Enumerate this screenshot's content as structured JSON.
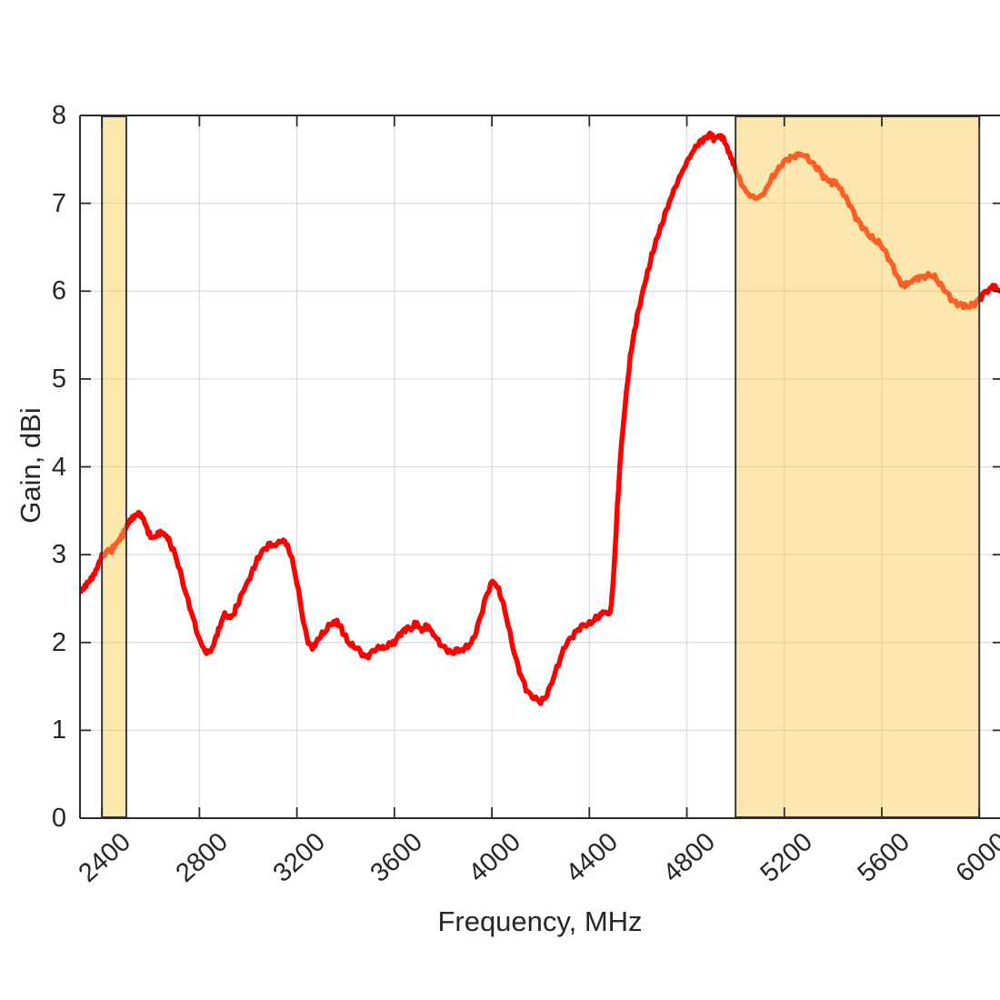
{
  "chart_data": {
    "type": "line",
    "title": "",
    "xlabel": "Frequency, MHz",
    "ylabel": "Gain, dBi",
    "xlim": [
      2310,
      6085
    ],
    "ylim": [
      0,
      8
    ],
    "x_ticks": [
      2400,
      2800,
      3200,
      3600,
      4000,
      4400,
      4800,
      5200,
      5600,
      6000
    ],
    "y_ticks": [
      0,
      1,
      2,
      3,
      4,
      5,
      6,
      7,
      8
    ],
    "grid": true,
    "legend": "none",
    "colors": {
      "curve": "#ff0000",
      "band_fill": "#f6ca50",
      "band_fill_alpha": 0.47,
      "band_edge": "#3a3a3a",
      "axis": "#2b2b2b",
      "grid": "#dcdcdc",
      "text": "#262626",
      "background": "#ffffff"
    },
    "line_width": 5.5,
    "noise_amplitude": 0.02,
    "highlight_bands": [
      {
        "from": 2400,
        "to": 2500
      },
      {
        "from": 5000,
        "to": 6000
      }
    ],
    "series": [
      {
        "name": "gain",
        "points": [
          [
            2310,
            2.6
          ],
          [
            2325,
            2.62
          ],
          [
            2340,
            2.66
          ],
          [
            2355,
            2.72
          ],
          [
            2370,
            2.8
          ],
          [
            2385,
            2.88
          ],
          [
            2400,
            2.97
          ],
          [
            2413,
            3.01
          ],
          [
            2426,
            3.04
          ],
          [
            2440,
            3.05
          ],
          [
            2455,
            3.1
          ],
          [
            2470,
            3.17
          ],
          [
            2485,
            3.24
          ],
          [
            2500,
            3.31
          ],
          [
            2515,
            3.38
          ],
          [
            2530,
            3.44
          ],
          [
            2545,
            3.47
          ],
          [
            2560,
            3.44
          ],
          [
            2575,
            3.37
          ],
          [
            2590,
            3.27
          ],
          [
            2605,
            3.19
          ],
          [
            2620,
            3.19
          ],
          [
            2635,
            3.25
          ],
          [
            2650,
            3.26
          ],
          [
            2665,
            3.2
          ],
          [
            2680,
            3.13
          ],
          [
            2700,
            3.0
          ],
          [
            2720,
            2.81
          ],
          [
            2740,
            2.61
          ],
          [
            2760,
            2.41
          ],
          [
            2780,
            2.21
          ],
          [
            2800,
            2.04
          ],
          [
            2818,
            1.92
          ],
          [
            2835,
            1.88
          ],
          [
            2852,
            1.93
          ],
          [
            2868,
            2.05
          ],
          [
            2884,
            2.2
          ],
          [
            2898,
            2.29
          ],
          [
            2910,
            2.32
          ],
          [
            2923,
            2.27
          ],
          [
            2938,
            2.32
          ],
          [
            2955,
            2.42
          ],
          [
            2975,
            2.55
          ],
          [
            3000,
            2.7
          ],
          [
            3025,
            2.87
          ],
          [
            3050,
            3.0
          ],
          [
            3070,
            3.08
          ],
          [
            3090,
            3.13
          ],
          [
            3108,
            3.09
          ],
          [
            3126,
            3.15
          ],
          [
            3145,
            3.17
          ],
          [
            3162,
            3.09
          ],
          [
            3180,
            2.95
          ],
          [
            3200,
            2.68
          ],
          [
            3220,
            2.35
          ],
          [
            3240,
            2.07
          ],
          [
            3258,
            1.94
          ],
          [
            3274,
            1.98
          ],
          [
            3290,
            2.04
          ],
          [
            3310,
            2.11
          ],
          [
            3330,
            2.19
          ],
          [
            3350,
            2.23
          ],
          [
            3365,
            2.24
          ],
          [
            3382,
            2.16
          ],
          [
            3400,
            2.06
          ],
          [
            3420,
            1.98
          ],
          [
            3440,
            1.94
          ],
          [
            3460,
            1.9
          ],
          [
            3480,
            1.84
          ],
          [
            3500,
            1.86
          ],
          [
            3520,
            1.92
          ],
          [
            3540,
            1.95
          ],
          [
            3558,
            1.93
          ],
          [
            3578,
            1.97
          ],
          [
            3600,
            2.01
          ],
          [
            3620,
            2.08
          ],
          [
            3640,
            2.14
          ],
          [
            3655,
            2.18
          ],
          [
            3668,
            2.15
          ],
          [
            3683,
            2.21
          ],
          [
            3698,
            2.18
          ],
          [
            3713,
            2.14
          ],
          [
            3728,
            2.19
          ],
          [
            3743,
            2.16
          ],
          [
            3760,
            2.1
          ],
          [
            3780,
            2.02
          ],
          [
            3800,
            1.95
          ],
          [
            3820,
            1.9
          ],
          [
            3840,
            1.88
          ],
          [
            3858,
            1.92
          ],
          [
            3876,
            1.91
          ],
          [
            3895,
            1.94
          ],
          [
            3915,
            2.0
          ],
          [
            3935,
            2.12
          ],
          [
            3955,
            2.3
          ],
          [
            3975,
            2.52
          ],
          [
            3995,
            2.66
          ],
          [
            4008,
            2.7
          ],
          [
            4022,
            2.63
          ],
          [
            4040,
            2.5
          ],
          [
            4060,
            2.28
          ],
          [
            4080,
            2.03
          ],
          [
            4100,
            1.8
          ],
          [
            4120,
            1.61
          ],
          [
            4140,
            1.48
          ],
          [
            4160,
            1.4
          ],
          [
            4180,
            1.35
          ],
          [
            4200,
            1.33
          ],
          [
            4220,
            1.38
          ],
          [
            4240,
            1.49
          ],
          [
            4260,
            1.66
          ],
          [
            4280,
            1.82
          ],
          [
            4300,
            1.95
          ],
          [
            4320,
            2.04
          ],
          [
            4340,
            2.11
          ],
          [
            4360,
            2.16
          ],
          [
            4380,
            2.2
          ],
          [
            4400,
            2.22
          ],
          [
            4420,
            2.25
          ],
          [
            4440,
            2.29
          ],
          [
            4455,
            2.33
          ],
          [
            4468,
            2.35
          ],
          [
            4480,
            2.31
          ],
          [
            4490,
            2.42
          ],
          [
            4498,
            2.7
          ],
          [
            4506,
            3.05
          ],
          [
            4515,
            3.55
          ],
          [
            4525,
            4.0
          ],
          [
            4538,
            4.45
          ],
          [
            4552,
            4.85
          ],
          [
            4568,
            5.25
          ],
          [
            4585,
            5.55
          ],
          [
            4602,
            5.78
          ],
          [
            4622,
            6.02
          ],
          [
            4645,
            6.28
          ],
          [
            4668,
            6.52
          ],
          [
            4692,
            6.72
          ],
          [
            4716,
            6.92
          ],
          [
            4740,
            7.1
          ],
          [
            4764,
            7.26
          ],
          [
            4788,
            7.4
          ],
          [
            4812,
            7.53
          ],
          [
            4836,
            7.64
          ],
          [
            4858,
            7.71
          ],
          [
            4878,
            7.75
          ],
          [
            4895,
            7.78
          ],
          [
            4910,
            7.74
          ],
          [
            4925,
            7.77
          ],
          [
            4940,
            7.75
          ],
          [
            4955,
            7.7
          ],
          [
            4970,
            7.61
          ],
          [
            4985,
            7.5
          ],
          [
            5000,
            7.38
          ],
          [
            5018,
            7.26
          ],
          [
            5036,
            7.16
          ],
          [
            5054,
            7.1
          ],
          [
            5072,
            7.07
          ],
          [
            5090,
            7.06
          ],
          [
            5108,
            7.09
          ],
          [
            5126,
            7.16
          ],
          [
            5145,
            7.26
          ],
          [
            5165,
            7.35
          ],
          [
            5185,
            7.43
          ],
          [
            5205,
            7.48
          ],
          [
            5225,
            7.52
          ],
          [
            5245,
            7.55
          ],
          [
            5262,
            7.56
          ],
          [
            5280,
            7.54
          ],
          [
            5300,
            7.5
          ],
          [
            5320,
            7.45
          ],
          [
            5340,
            7.38
          ],
          [
            5360,
            7.31
          ],
          [
            5380,
            7.26
          ],
          [
            5395,
            7.22
          ],
          [
            5410,
            7.25
          ],
          [
            5425,
            7.19
          ],
          [
            5440,
            7.12
          ],
          [
            5460,
            7.02
          ],
          [
            5480,
            6.92
          ],
          [
            5500,
            6.82
          ],
          [
            5520,
            6.73
          ],
          [
            5540,
            6.66
          ],
          [
            5560,
            6.61
          ],
          [
            5580,
            6.56
          ],
          [
            5600,
            6.51
          ],
          [
            5620,
            6.43
          ],
          [
            5640,
            6.31
          ],
          [
            5660,
            6.18
          ],
          [
            5680,
            6.09
          ],
          [
            5695,
            6.07
          ],
          [
            5712,
            6.09
          ],
          [
            5730,
            6.12
          ],
          [
            5750,
            6.15
          ],
          [
            5770,
            6.17
          ],
          [
            5790,
            6.18
          ],
          [
            5810,
            6.17
          ],
          [
            5830,
            6.12
          ],
          [
            5850,
            6.04
          ],
          [
            5870,
            5.96
          ],
          [
            5890,
            5.9
          ],
          [
            5910,
            5.86
          ],
          [
            5930,
            5.83
          ],
          [
            5945,
            5.82
          ],
          [
            5962,
            5.83
          ],
          [
            5980,
            5.86
          ],
          [
            6000,
            5.91
          ],
          [
            6020,
            5.97
          ],
          [
            6040,
            6.02
          ],
          [
            6055,
            6.04
          ],
          [
            6070,
            6.03
          ],
          [
            6085,
            6.0
          ]
        ]
      }
    ]
  }
}
